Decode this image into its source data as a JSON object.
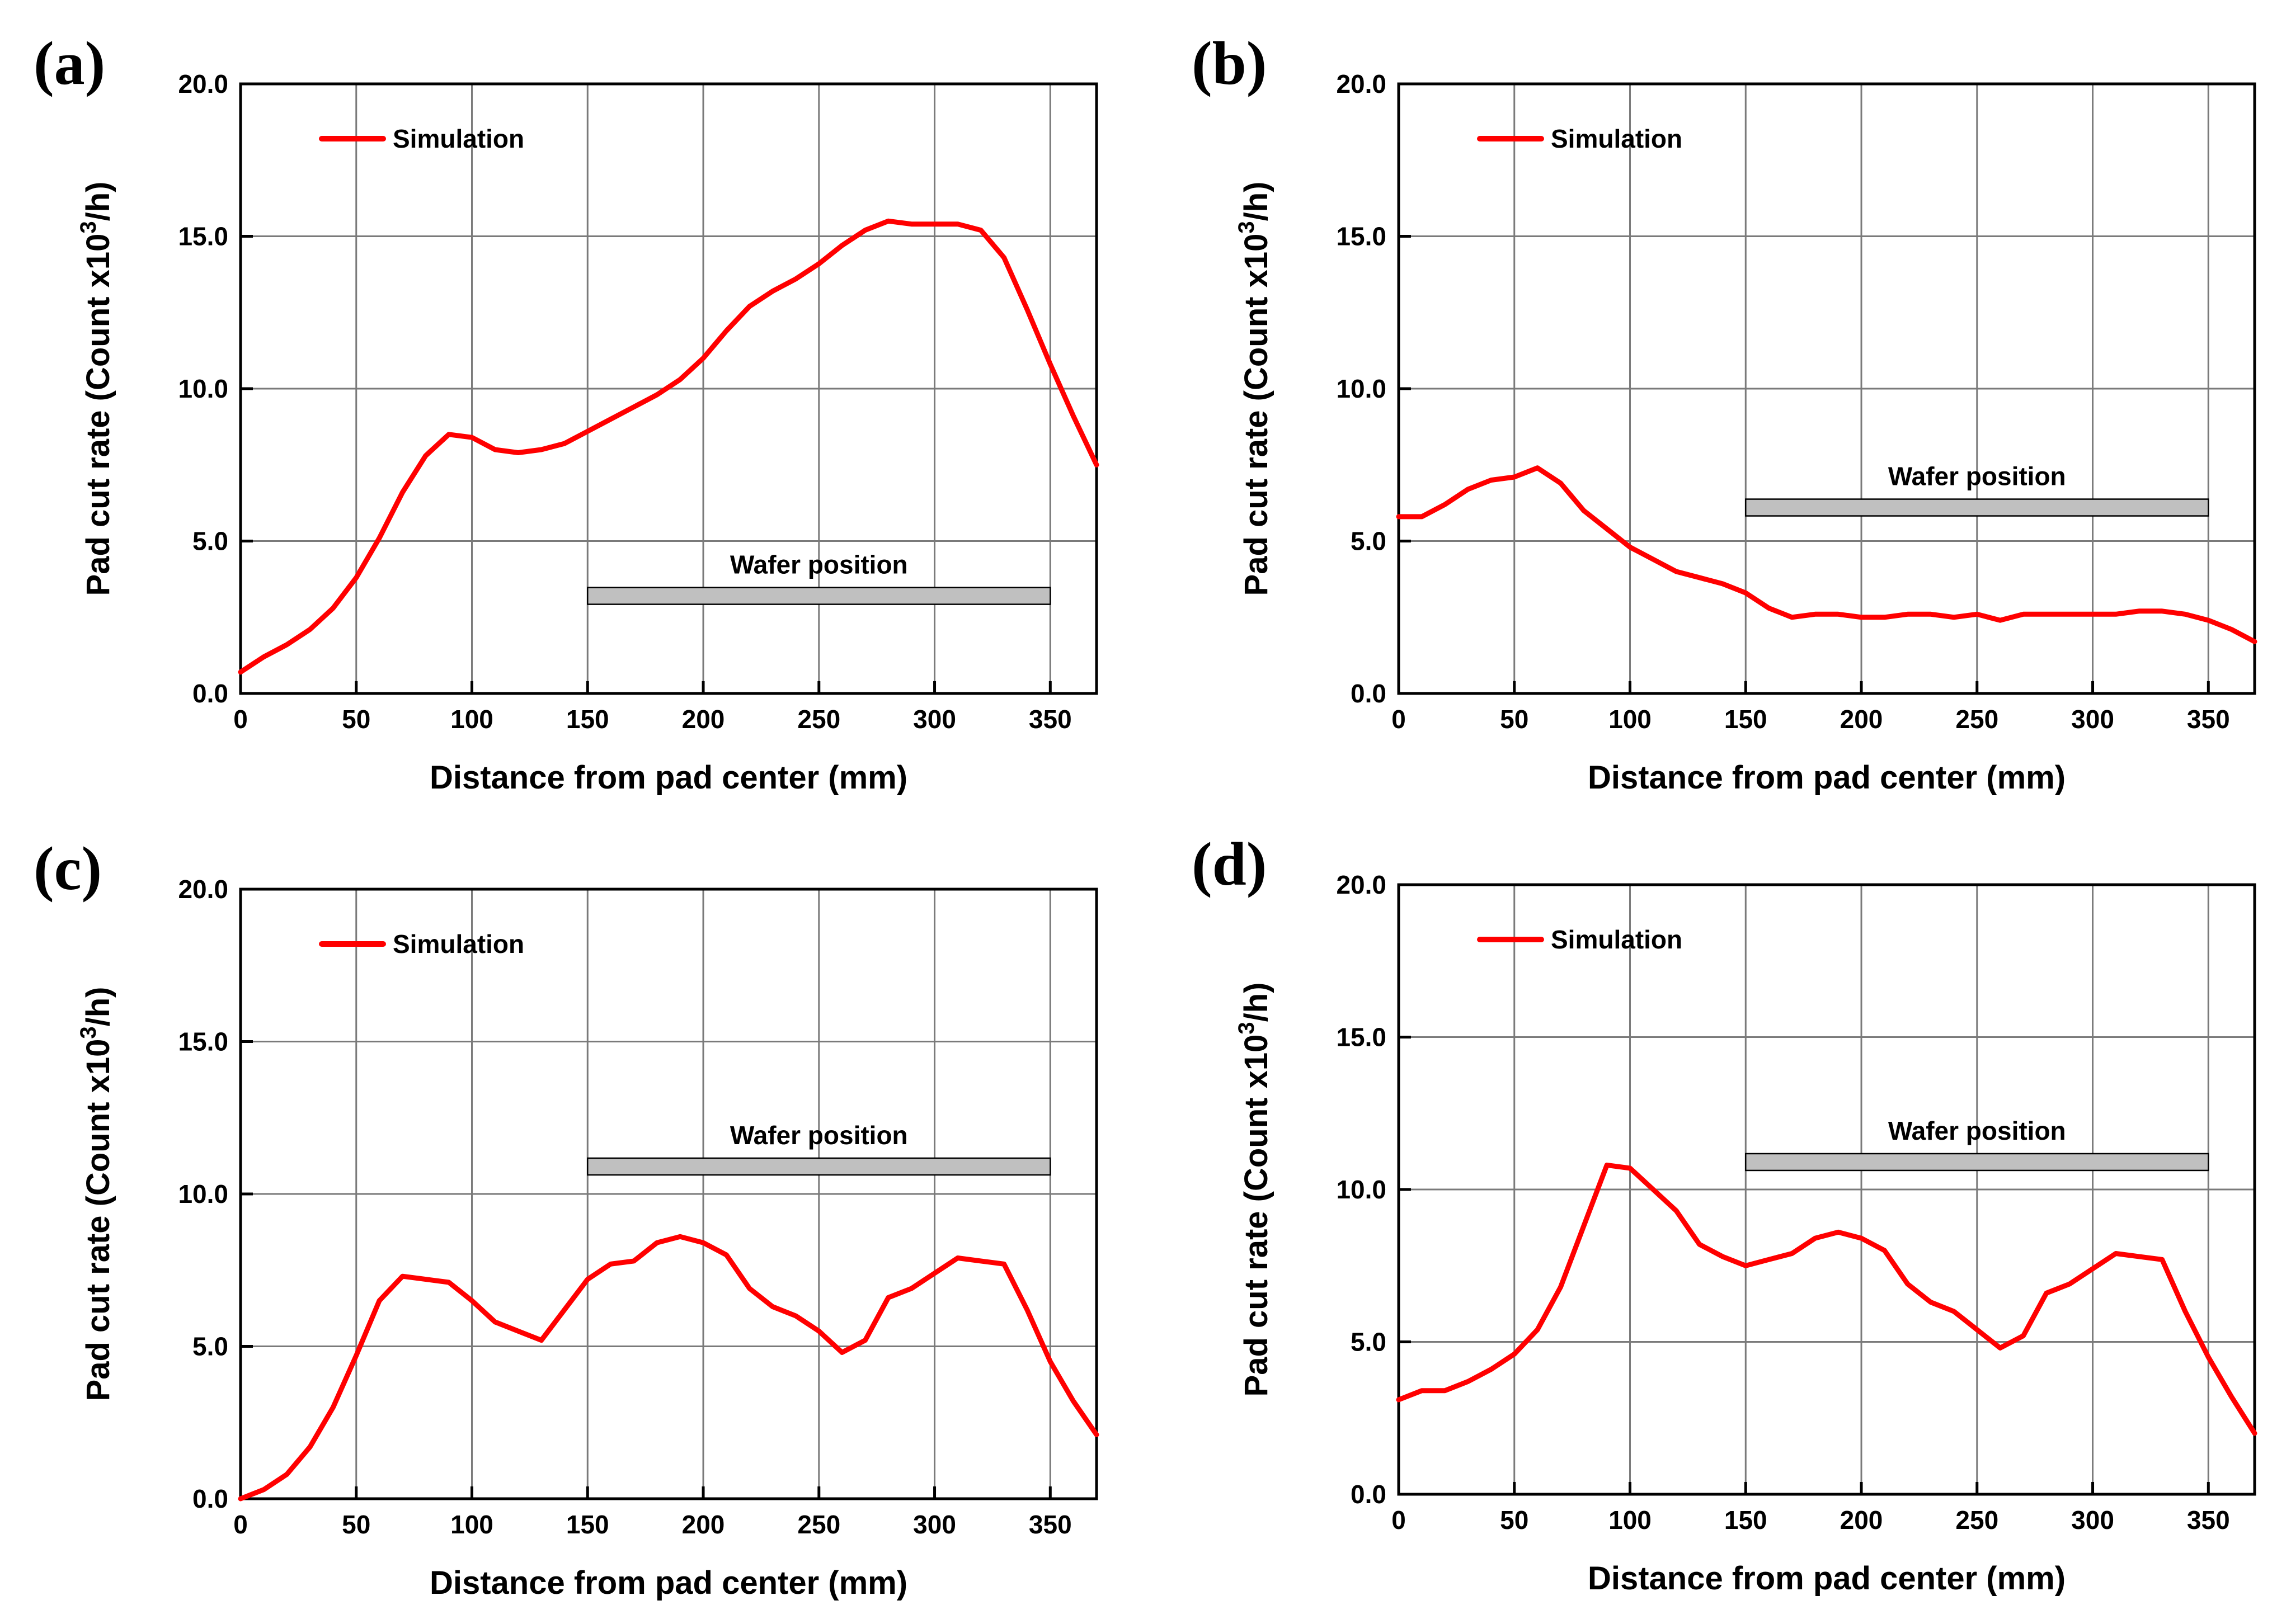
{
  "colors": {
    "series": "#ff0000",
    "wafer_bar": "#c0c0c0",
    "grid": "#7a7a7a"
  },
  "chart_data": [
    {
      "panel": "(a)",
      "type": "line",
      "xlabel": "Distance from pad center (mm)",
      "ylabel_main": "Pad cut rate (Count x10",
      "ylabel_sup": "3",
      "ylabel_end": "/h)",
      "xlim": [
        0,
        370
      ],
      "ylim": [
        0,
        20
      ],
      "xticks": [
        0,
        50,
        100,
        150,
        200,
        250,
        300,
        350
      ],
      "xtick_labels": [
        "0",
        "50",
        "100",
        "150",
        "200",
        "250",
        "300",
        "350"
      ],
      "yticks": [
        0,
        5,
        10,
        15,
        20
      ],
      "ytick_labels": [
        "0.0",
        "5.0",
        "10.0",
        "15.0",
        "20.0"
      ],
      "grid": true,
      "legend": {
        "label": "Simulation",
        "placement": "top-left"
      },
      "wafer": {
        "label": "Wafer position",
        "x_start": 150,
        "x_end": 350,
        "y": 3.2
      },
      "series": [
        {
          "name": "Simulation",
          "x": [
            0,
            10,
            20,
            30,
            40,
            50,
            60,
            70,
            80,
            90,
            100,
            110,
            120,
            130,
            140,
            150,
            160,
            170,
            180,
            190,
            200,
            210,
            220,
            230,
            240,
            250,
            260,
            270,
            280,
            290,
            300,
            310,
            320,
            330,
            340,
            350,
            360,
            370
          ],
          "y": [
            0.7,
            1.2,
            1.6,
            2.1,
            2.8,
            3.8,
            5.1,
            6.6,
            7.8,
            8.5,
            8.4,
            8.0,
            7.9,
            8.0,
            8.2,
            8.6,
            9.0,
            9.4,
            9.8,
            10.3,
            11.0,
            11.9,
            12.7,
            13.2,
            13.6,
            14.1,
            14.7,
            15.2,
            15.5,
            15.4,
            15.4,
            15.4,
            15.2,
            14.3,
            12.6,
            10.8,
            9.1,
            7.5
          ]
        }
      ]
    },
    {
      "panel": "(b)",
      "type": "line",
      "xlabel": "Distance from pad center (mm)",
      "ylabel_main": "Pad cut rate (Count x10",
      "ylabel_sup": "3",
      "ylabel_end": "/h)",
      "xlim": [
        0,
        370
      ],
      "ylim": [
        0,
        20
      ],
      "xticks": [
        0,
        50,
        100,
        150,
        200,
        250,
        300,
        350
      ],
      "xtick_labels": [
        "0",
        "50",
        "100",
        "150",
        "200",
        "250",
        "300",
        "350"
      ],
      "yticks": [
        0,
        5,
        10,
        15,
        20
      ],
      "ytick_labels": [
        "0.0",
        "5.0",
        "10.0",
        "15.0",
        "20.0"
      ],
      "grid": true,
      "legend": {
        "label": "Simulation",
        "placement": "top-left"
      },
      "wafer": {
        "label": "Wafer position",
        "x_start": 150,
        "x_end": 350,
        "y": 6.1
      },
      "series": [
        {
          "name": "Simulation",
          "x": [
            0,
            10,
            20,
            30,
            40,
            50,
            60,
            70,
            80,
            90,
            100,
            110,
            120,
            130,
            140,
            150,
            160,
            170,
            180,
            190,
            200,
            210,
            220,
            230,
            240,
            250,
            260,
            270,
            280,
            290,
            300,
            310,
            320,
            330,
            340,
            350,
            360,
            370
          ],
          "y": [
            5.8,
            5.8,
            6.2,
            6.7,
            7.0,
            7.1,
            7.4,
            6.9,
            6.0,
            5.4,
            4.8,
            4.4,
            4.0,
            3.8,
            3.6,
            3.3,
            2.8,
            2.5,
            2.6,
            2.6,
            2.5,
            2.5,
            2.6,
            2.6,
            2.5,
            2.6,
            2.4,
            2.6,
            2.6,
            2.6,
            2.6,
            2.6,
            2.7,
            2.7,
            2.6,
            2.4,
            2.1,
            1.7
          ]
        }
      ]
    },
    {
      "panel": "(c)",
      "type": "line",
      "xlabel": "Distance from pad center (mm)",
      "ylabel_main": "Pad cut rate (Count x10",
      "ylabel_sup": "3",
      "ylabel_end": "/h)",
      "xlim": [
        0,
        370
      ],
      "ylim": [
        0,
        20
      ],
      "xticks": [
        0,
        50,
        100,
        150,
        200,
        250,
        300,
        350
      ],
      "xtick_labels": [
        "0",
        "50",
        "100",
        "150",
        "200",
        "250",
        "300",
        "350"
      ],
      "yticks": [
        0,
        5,
        10,
        15,
        20
      ],
      "ytick_labels": [
        "0.0",
        "5.0",
        "10.0",
        "15.0",
        "20.0"
      ],
      "grid": true,
      "legend": {
        "label": "Simulation",
        "placement": "top-left"
      },
      "wafer": {
        "label": "Wafer position",
        "x_start": 150,
        "x_end": 350,
        "y": 10.9
      },
      "series": [
        {
          "name": "Simulation",
          "x": [
            0,
            10,
            20,
            30,
            40,
            50,
            60,
            70,
            80,
            90,
            100,
            110,
            120,
            130,
            140,
            150,
            160,
            170,
            180,
            190,
            200,
            210,
            220,
            230,
            240,
            250,
            260,
            270,
            280,
            290,
            300,
            310,
            320,
            330,
            340,
            350,
            360,
            370
          ],
          "y": [
            0.0,
            0.3,
            0.8,
            1.7,
            3.0,
            4.7,
            6.5,
            7.3,
            7.2,
            7.1,
            6.5,
            5.8,
            5.5,
            5.2,
            6.2,
            7.2,
            7.7,
            7.8,
            8.4,
            8.6,
            8.4,
            8.0,
            6.9,
            6.3,
            6.0,
            5.5,
            4.8,
            5.2,
            6.6,
            6.9,
            7.4,
            7.9,
            7.8,
            7.7,
            6.2,
            4.5,
            3.2,
            2.1
          ]
        }
      ]
    },
    {
      "panel": "(d)",
      "type": "line",
      "xlabel": "Distance from pad center (mm)",
      "ylabel_main": "Pad cut rate (Count x10",
      "ylabel_sup": "3",
      "ylabel_end": "/h)",
      "xlim": [
        0,
        370
      ],
      "ylim": [
        0,
        20
      ],
      "xticks": [
        0,
        50,
        100,
        150,
        200,
        250,
        300,
        350
      ],
      "xtick_labels": [
        "0",
        "50",
        "100",
        "150",
        "200",
        "250",
        "300",
        "350"
      ],
      "yticks": [
        0,
        5,
        10,
        15,
        20
      ],
      "ytick_labels": [
        "0.0",
        "5.0",
        "10.0",
        "15.0",
        "20.0"
      ],
      "grid": true,
      "legend": {
        "label": "Simulation",
        "placement": "top-left"
      },
      "wafer": {
        "label": "Wafer position",
        "x_start": 150,
        "x_end": 350,
        "y": 10.9
      },
      "series": [
        {
          "name": "Simulation",
          "x": [
            0,
            10,
            20,
            30,
            40,
            50,
            60,
            70,
            80,
            90,
            100,
            110,
            120,
            130,
            140,
            150,
            160,
            170,
            180,
            190,
            200,
            210,
            220,
            230,
            240,
            250,
            260,
            270,
            280,
            290,
            300,
            310,
            320,
            330,
            340,
            350,
            360,
            370
          ],
          "y": [
            3.1,
            3.4,
            3.4,
            3.7,
            4.1,
            4.6,
            5.4,
            6.8,
            8.8,
            10.8,
            10.7,
            10.0,
            9.3,
            8.2,
            7.8,
            7.5,
            7.7,
            7.9,
            8.4,
            8.6,
            8.4,
            8.0,
            6.9,
            6.3,
            6.0,
            5.4,
            4.8,
            5.2,
            6.6,
            6.9,
            7.4,
            7.9,
            7.8,
            7.7,
            6.0,
            4.5,
            3.2,
            2.0
          ]
        }
      ]
    }
  ]
}
